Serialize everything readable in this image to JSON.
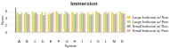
{
  "chart_data": {
    "type": "bar",
    "title": "Immersion",
    "x_label": "System",
    "y_label": "Score",
    "categories": [
      "A",
      "B",
      "C",
      "D",
      "E",
      "F",
      "G",
      "H",
      "I",
      "J",
      "K",
      "L",
      "M",
      "N"
    ],
    "series": [
      {
        "name": "Large Indicator w/ Random Load",
        "color": "#f2d44e",
        "values": [
          5.8,
          5.5,
          6.0,
          5.2,
          5.6,
          6.1,
          5.4,
          5.9,
          5.3,
          5.7,
          6.2,
          5.5,
          5.8,
          6.0
        ]
      },
      {
        "name": "Large Indicator w/ Fixed Load",
        "color": "#b6d98a",
        "values": [
          5.5,
          5.9,
          5.6,
          5.8,
          5.3,
          5.7,
          6.0,
          5.5,
          5.8,
          5.4,
          5.9,
          6.1,
          5.6,
          5.7
        ]
      },
      {
        "name": "Small Indicator w/ Random Load",
        "color": "#a8a8a8",
        "values": [
          5.2,
          5.4,
          5.7,
          5.0,
          5.5,
          5.3,
          5.6,
          5.2,
          5.5,
          5.1,
          5.6,
          5.4,
          5.3,
          5.5
        ]
      },
      {
        "name": "Small Indicator w/ Fixed Load",
        "color": "#e9b8a6",
        "values": [
          5.6,
          5.2,
          5.4,
          5.6,
          5.8,
          5.5,
          5.3,
          5.7,
          5.4,
          5.6,
          5.3,
          5.8,
          5.5,
          5.4
        ]
      }
    ],
    "ylim": [
      0,
      7
    ],
    "yticks": [
      0,
      2,
      4,
      6
    ],
    "grid": true,
    "legend": "right"
  }
}
